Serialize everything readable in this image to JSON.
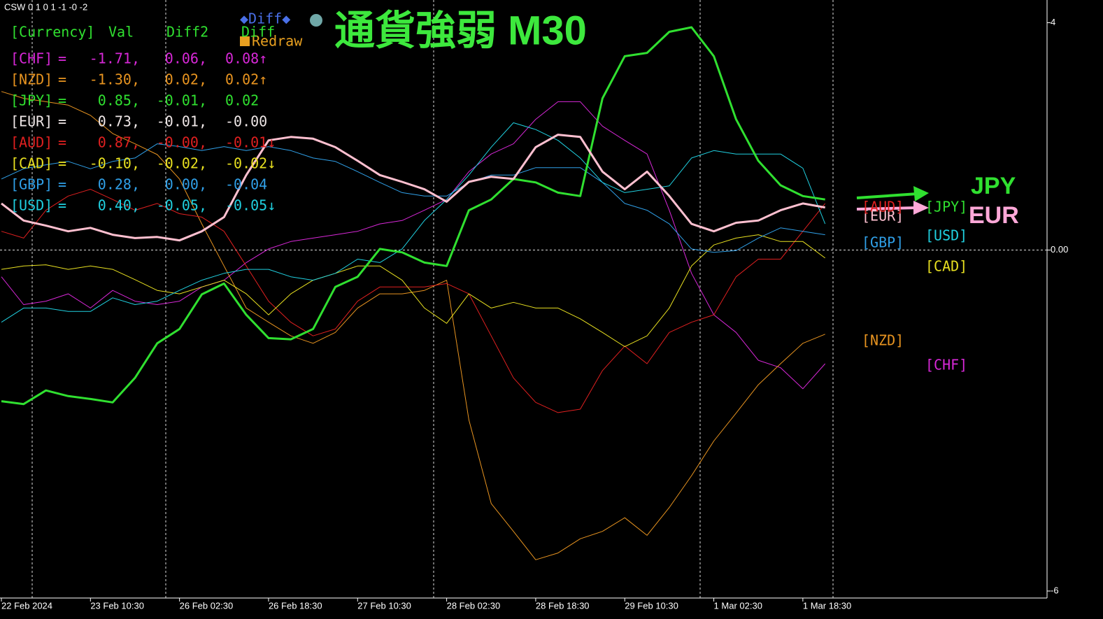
{
  "chart_data": {
    "type": "line",
    "title": "通貨強弱 M30",
    "indicator": "CSW 0 1 0 1 -1 -0 -2",
    "buttons": [
      "◆Diff◆",
      "Redraw"
    ],
    "categories": [
      "22 Feb 2024",
      null,
      null,
      null,
      "23 Feb 10:30",
      null,
      null,
      null,
      "26 Feb 02:30",
      null,
      null,
      null,
      "26 Feb 18:30",
      null,
      null,
      null,
      "27 Feb 10:30",
      null,
      null,
      null,
      "28 Feb 02:30",
      null,
      null,
      null,
      "28 Feb 18:30",
      null,
      null,
      null,
      "29 Feb 10:30",
      null,
      null,
      null,
      "1 Mar 02:30",
      null,
      null,
      null,
      "1 Mar 18:30",
      null
    ],
    "ylim": [
      -6,
      4.4
    ],
    "yticks": [
      4,
      {
        "value": 0,
        "label": "0.00"
      },
      -6
    ],
    "zero_line": true,
    "series": [
      {
        "name": "[CHF]",
        "color": "#d828d8",
        "width": 1,
        "values": [
          -0.47,
          -0.96,
          -0.9,
          -0.77,
          -1.02,
          -0.71,
          -0.9,
          -0.96,
          -0.9,
          -0.65,
          -0.53,
          -0.22,
          0.02,
          0.15,
          0.21,
          0.27,
          0.33,
          0.46,
          0.52,
          0.7,
          0.89,
          1.38,
          1.69,
          1.87,
          2.3,
          2.61,
          2.61,
          2.18,
          1.93,
          1.69,
          0.7,
          -0.41,
          -1.14,
          -1.45,
          -1.94,
          -2.07,
          -2.44,
          -2.0
        ]
      },
      {
        "name": "[NZD]",
        "color": "#e89420",
        "width": 1,
        "values": [
          2.79,
          2.67,
          2.61,
          2.55,
          2.37,
          2.05,
          1.87,
          1.68,
          1.25,
          0.46,
          -0.28,
          -1.02,
          -1.27,
          -1.51,
          -1.64,
          -1.45,
          -1.02,
          -0.77,
          -0.77,
          -0.71,
          -0.53,
          -2.99,
          -4.46,
          -4.95,
          -5.45,
          -5.33,
          -5.08,
          -4.95,
          -4.71,
          -5.02,
          -4.53,
          -3.97,
          -3.36,
          -2.87,
          -2.37,
          -2.0,
          -1.64,
          -1.48
        ]
      },
      {
        "name": "[JPY]",
        "color": "#30e030",
        "width": 3,
        "values": [
          -2.66,
          -2.71,
          -2.47,
          -2.57,
          -2.62,
          -2.68,
          -2.25,
          -1.64,
          -1.39,
          -0.78,
          -0.59,
          -1.14,
          -1.55,
          -1.57,
          -1.39,
          -0.65,
          -0.47,
          0.02,
          -0.04,
          -0.22,
          -0.28,
          0.7,
          0.89,
          1.25,
          1.19,
          1.01,
          0.95,
          2.67,
          3.41,
          3.47,
          3.84,
          3.92,
          3.41,
          2.3,
          1.57,
          1.14,
          0.95,
          0.89
        ]
      },
      {
        "name": "[EUR]",
        "color": "#ffc0d0",
        "width": 3,
        "values": [
          0.82,
          0.52,
          0.43,
          0.33,
          0.39,
          0.27,
          0.21,
          0.23,
          0.17,
          0.33,
          0.58,
          1.32,
          1.93,
          1.99,
          1.96,
          1.81,
          1.57,
          1.32,
          1.2,
          1.07,
          0.85,
          1.2,
          1.29,
          1.25,
          1.81,
          2.03,
          1.99,
          1.38,
          1.07,
          1.38,
          0.95,
          0.46,
          0.33,
          0.48,
          0.52,
          0.7,
          0.82,
          0.75
        ]
      },
      {
        "name": "[AUD]",
        "color": "#e02020",
        "width": 1,
        "values": [
          0.33,
          0.21,
          0.7,
          0.95,
          1.07,
          0.89,
          0.7,
          0.82,
          0.64,
          0.58,
          0.33,
          -0.28,
          -0.9,
          -1.27,
          -1.51,
          -1.39,
          -0.9,
          -0.65,
          -0.65,
          -0.65,
          -0.59,
          -0.77,
          -1.51,
          -2.25,
          -2.68,
          -2.86,
          -2.8,
          -2.12,
          -1.69,
          -2.0,
          -1.45,
          -1.27,
          -1.14,
          -0.47,
          -0.16,
          -0.16,
          0.33,
          0.82
        ]
      },
      {
        "name": "[CAD]",
        "color": "#e8e020",
        "width": 1,
        "values": [
          -0.34,
          -0.28,
          -0.26,
          -0.34,
          -0.28,
          -0.34,
          -0.52,
          -0.71,
          -0.77,
          -0.65,
          -0.53,
          -0.77,
          -1.14,
          -0.77,
          -0.53,
          -0.41,
          -0.28,
          -0.28,
          -0.53,
          -1.02,
          -1.29,
          -0.77,
          -1.02,
          -0.92,
          -1.02,
          -1.02,
          -1.21,
          -1.45,
          -1.7,
          -1.51,
          -1.02,
          -0.28,
          0.09,
          0.21,
          0.27,
          0.15,
          0.15,
          -0.14
        ]
      },
      {
        "name": "[GBP]",
        "color": "#30a0e8",
        "width": 1,
        "values": [
          1.25,
          1.43,
          1.5,
          1.56,
          1.43,
          1.56,
          1.62,
          1.87,
          1.82,
          1.75,
          1.82,
          1.75,
          1.82,
          1.75,
          1.62,
          1.56,
          1.38,
          1.19,
          1.01,
          0.95,
          0.95,
          1.19,
          1.32,
          1.32,
          1.45,
          1.45,
          1.45,
          1.19,
          0.82,
          0.7,
          0.46,
          0.02,
          -0.04,
          -0.01,
          0.21,
          0.39,
          0.33,
          0.27
        ]
      },
      {
        "name": "[USD]",
        "color": "#20d0e0",
        "width": 1,
        "values": [
          -1.27,
          -1.02,
          -1.02,
          -1.08,
          -1.08,
          -0.84,
          -0.96,
          -0.9,
          -0.71,
          -0.53,
          -0.41,
          -0.34,
          -0.34,
          -0.47,
          -0.53,
          -0.41,
          -0.16,
          -0.22,
          0.02,
          0.52,
          0.89,
          1.32,
          1.81,
          2.24,
          2.12,
          1.93,
          1.62,
          1.19,
          1.01,
          1.07,
          1.13,
          1.62,
          1.75,
          1.69,
          1.69,
          1.69,
          1.44,
          0.46
        ]
      }
    ],
    "table": {
      "header": [
        "[Currency]",
        "Val",
        "Diff2",
        "Diff"
      ],
      "rows": [
        {
          "currency": "[CHF]",
          "eq": "=",
          "val": "-1.71,",
          "diff2": "0.06,",
          "diff": "0.08↑",
          "color": "#d828d8"
        },
        {
          "currency": "[NZD]",
          "eq": "=",
          "val": "-1.30,",
          "diff2": "0.02,",
          "diff": "0.02↑",
          "color": "#e89420"
        },
        {
          "currency": "[JPY]",
          "eq": "=",
          "val": "0.85,",
          "diff2": "-0.01,",
          "diff": "0.02",
          "color": "#30e030"
        },
        {
          "currency": "[EUR]",
          "eq": "=",
          "val": "0.73,",
          "diff2": "-0.01,",
          "diff": "-0.00",
          "color": "#f0e8e8"
        },
        {
          "currency": "[AUD]",
          "eq": "=",
          "val": "0.87,",
          "diff2": "-0.00,",
          "diff": "-0.01↓",
          "color": "#e02020"
        },
        {
          "currency": "[CAD]",
          "eq": "=",
          "val": "-0.10,",
          "diff2": "-0.02,",
          "diff": "-0.02↓",
          "color": "#e8e020"
        },
        {
          "currency": "[GBP]",
          "eq": "=",
          "val": "0.28,",
          "diff2": "0.00,",
          "diff": "-0.04",
          "color": "#30a0e8"
        },
        {
          "currency": "[USD]",
          "eq": "=",
          "val": "0.40,",
          "diff2": "-0.05,",
          "diff": "-0.05↓",
          "color": "#20d0e0"
        }
      ]
    },
    "strongest": [
      {
        "text": "JPY",
        "color": "#30e030"
      },
      {
        "text": "EUR",
        "color": "#ffa8d8"
      }
    ]
  }
}
